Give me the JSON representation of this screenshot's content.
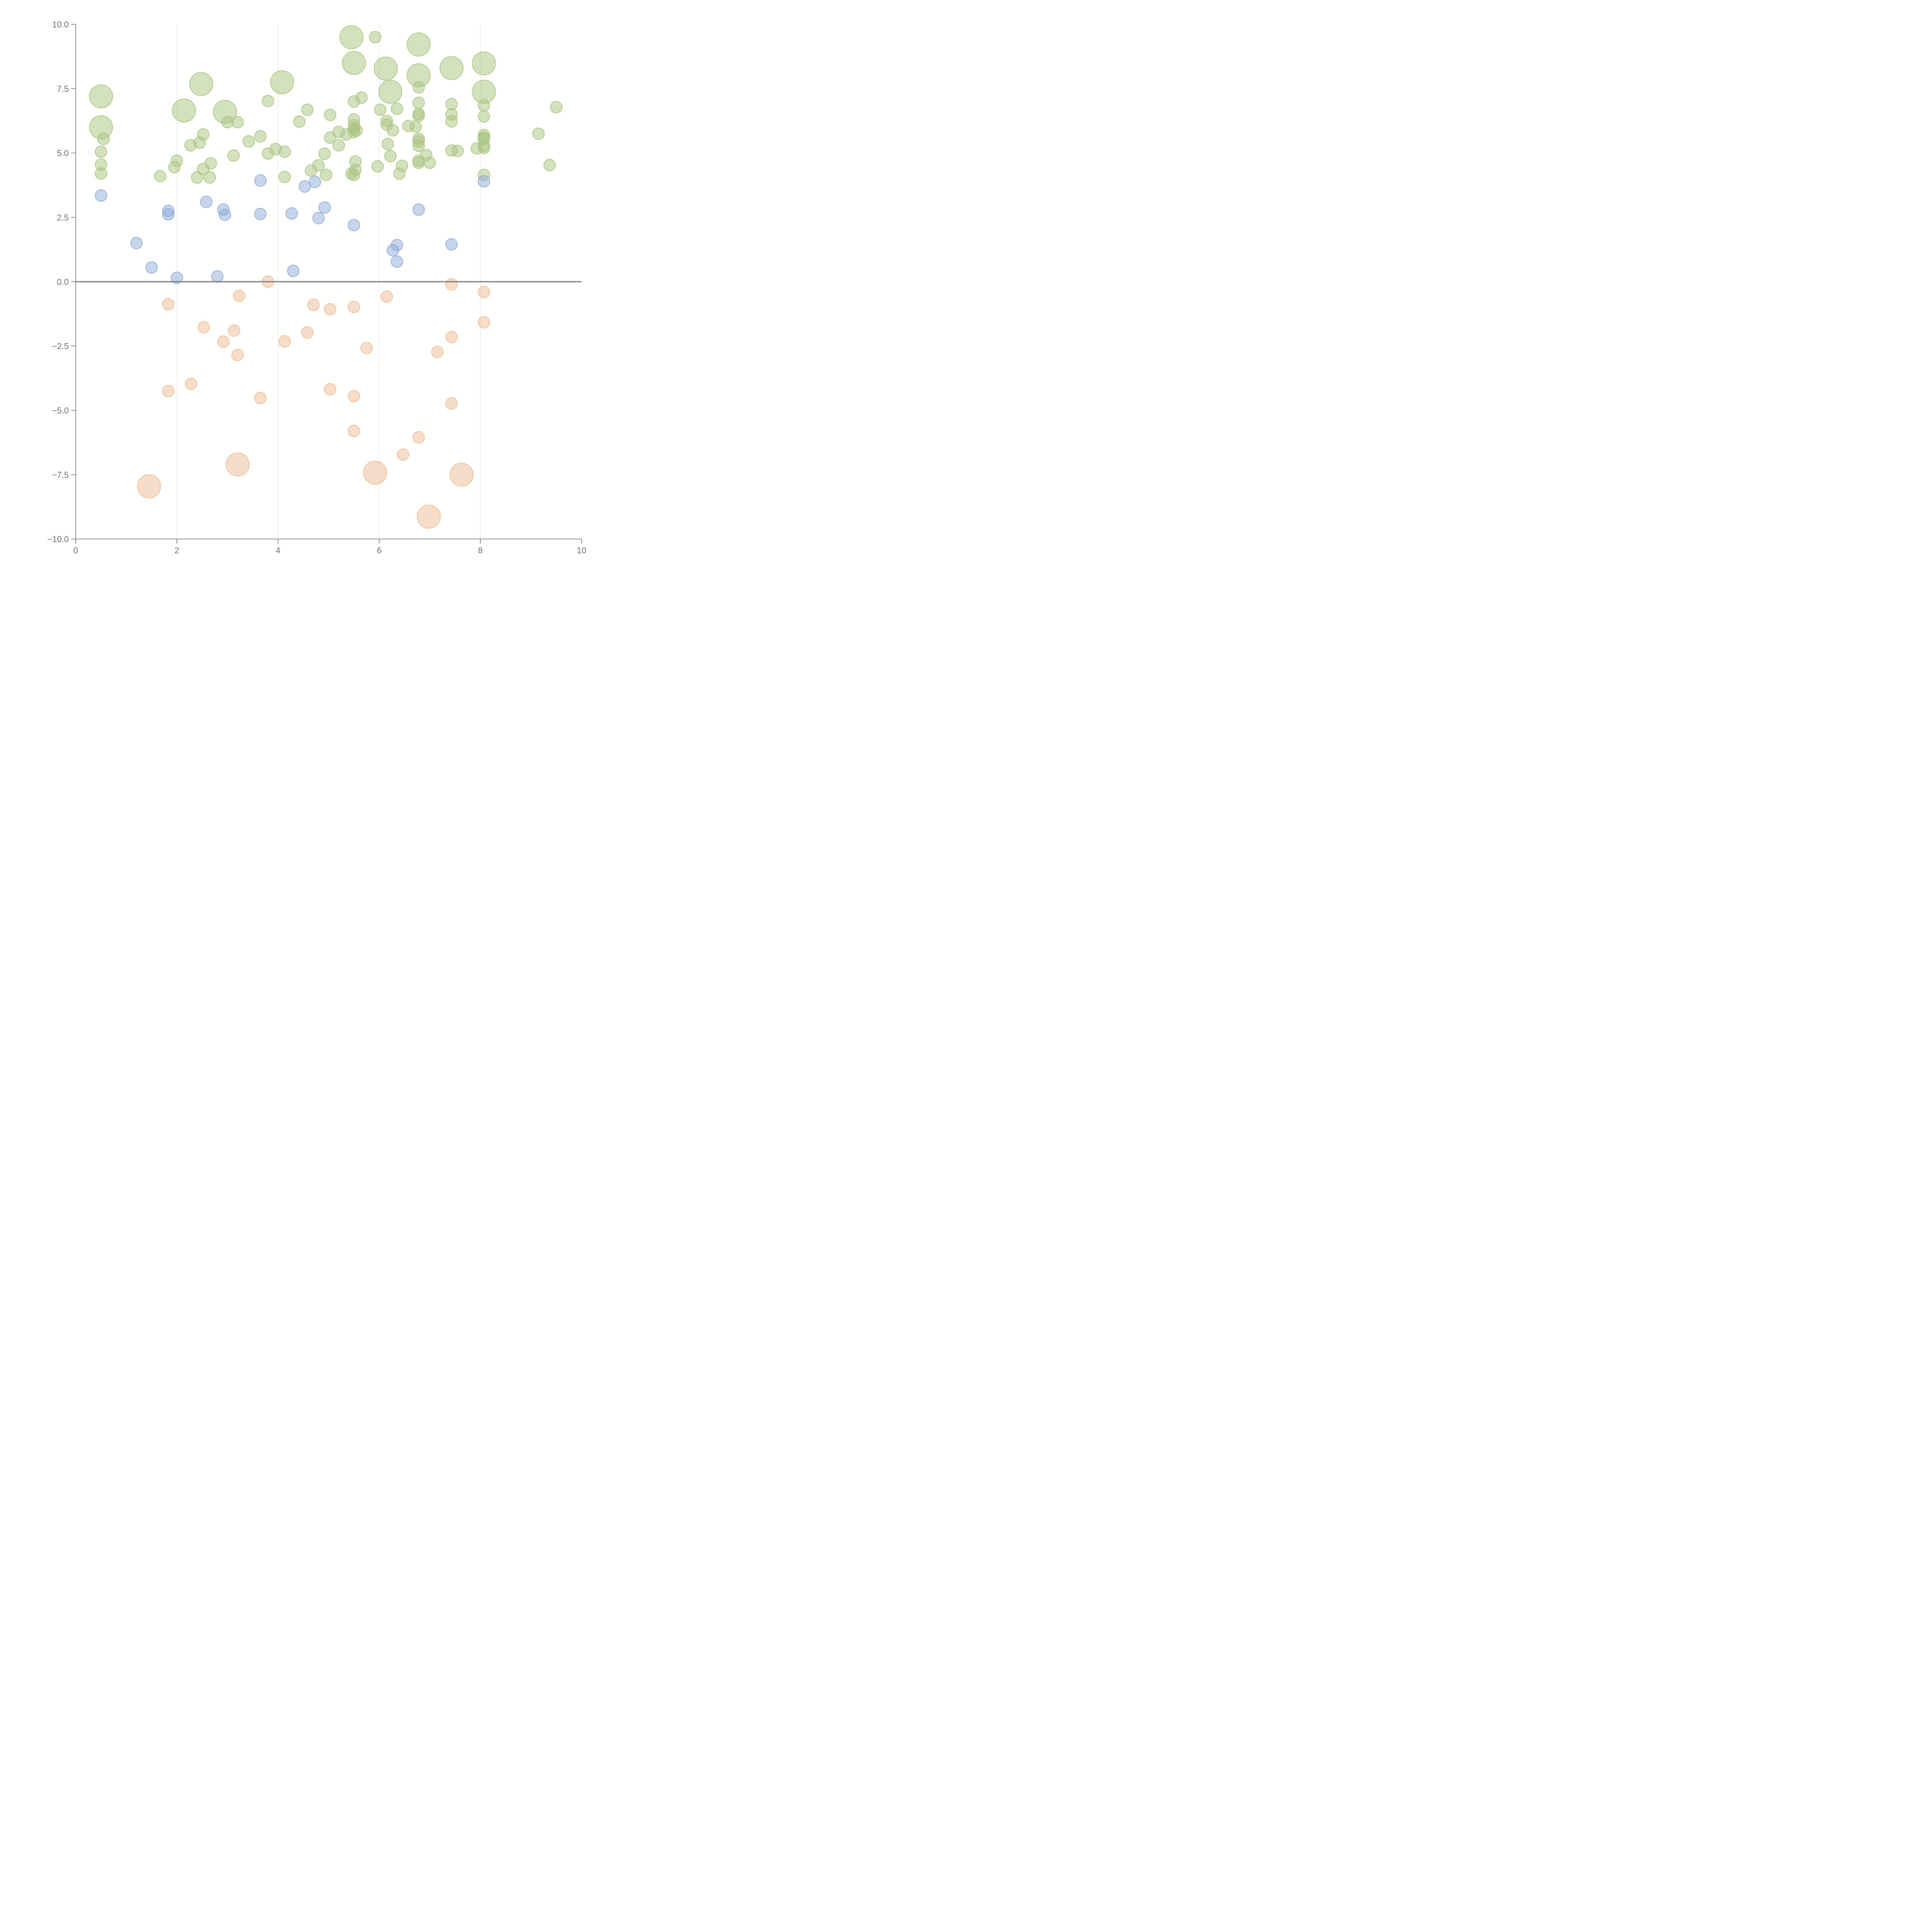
{
  "chart_data": {
    "type": "scatter",
    "title": "",
    "xlabel": "",
    "ylabel": "",
    "xlim": [
      0,
      10
    ],
    "ylim": [
      -10,
      10
    ],
    "x_ticks": [
      "0",
      "2",
      "4",
      "6",
      "8",
      "10"
    ],
    "y_ticks": [
      "−10.0",
      "−7.5",
      "−5.0",
      "−2.5",
      "0.0",
      "2.5",
      "5.0",
      "7.5",
      "10.0"
    ],
    "x_tick_values": [
      0,
      2,
      4,
      6,
      8,
      10
    ],
    "y_tick_values": [
      -10,
      -7.5,
      -5,
      -2.5,
      0,
      2.5,
      5,
      7.5,
      10
    ],
    "grid": "vertical gridlines at x ticks",
    "reference_line": {
      "y": 0,
      "color": "#777777"
    },
    "legend": "none",
    "series": [
      {
        "color": "#a9c47f",
        "points": [
          {
            "x": 0.5,
            "y": 7.2,
            "s": 3
          },
          {
            "x": 0.5,
            "y": 6.0,
            "s": 3
          },
          {
            "x": 0.55,
            "y": 5.55,
            "s": 1
          },
          {
            "x": 0.5,
            "y": 5.05,
            "s": 1
          },
          {
            "x": 0.5,
            "y": 4.55,
            "s": 1
          },
          {
            "x": 0.5,
            "y": 4.2,
            "s": 1
          },
          {
            "x": 1.67,
            "y": 4.1,
            "s": 1
          },
          {
            "x": 1.95,
            "y": 4.45,
            "s": 1
          },
          {
            "x": 2.0,
            "y": 4.7,
            "s": 1
          },
          {
            "x": 2.14,
            "y": 6.65,
            "s": 3
          },
          {
            "x": 2.27,
            "y": 5.3,
            "s": 1
          },
          {
            "x": 2.45,
            "y": 5.4,
            "s": 1
          },
          {
            "x": 2.4,
            "y": 4.05,
            "s": 1
          },
          {
            "x": 2.52,
            "y": 4.38,
            "s": 1
          },
          {
            "x": 2.52,
            "y": 5.72,
            "s": 1
          },
          {
            "x": 2.48,
            "y": 7.68,
            "s": 3
          },
          {
            "x": 2.65,
            "y": 4.05,
            "s": 1
          },
          {
            "x": 2.67,
            "y": 4.6,
            "s": 1
          },
          {
            "x": 2.95,
            "y": 6.6,
            "s": 3
          },
          {
            "x": 3.0,
            "y": 6.2,
            "s": 1
          },
          {
            "x": 3.2,
            "y": 6.2,
            "s": 1
          },
          {
            "x": 3.12,
            "y": 4.9,
            "s": 1
          },
          {
            "x": 3.42,
            "y": 5.45,
            "s": 1
          },
          {
            "x": 3.65,
            "y": 5.65,
            "s": 1
          },
          {
            "x": 3.8,
            "y": 7.02,
            "s": 1
          },
          {
            "x": 3.8,
            "y": 4.98,
            "s": 1
          },
          {
            "x": 3.95,
            "y": 5.15,
            "s": 1
          },
          {
            "x": 4.08,
            "y": 7.75,
            "s": 3
          },
          {
            "x": 4.13,
            "y": 5.05,
            "s": 1
          },
          {
            "x": 4.13,
            "y": 4.07,
            "s": 1
          },
          {
            "x": 4.42,
            "y": 6.22,
            "s": 1
          },
          {
            "x": 4.58,
            "y": 6.68,
            "s": 1
          },
          {
            "x": 4.65,
            "y": 4.32,
            "s": 1
          },
          {
            "x": 4.8,
            "y": 4.52,
            "s": 1
          },
          {
            "x": 4.92,
            "y": 4.97,
            "s": 1
          },
          {
            "x": 4.95,
            "y": 4.15,
            "s": 1
          },
          {
            "x": 5.03,
            "y": 6.48,
            "s": 1
          },
          {
            "x": 5.03,
            "y": 5.6,
            "s": 1
          },
          {
            "x": 5.2,
            "y": 5.82,
            "s": 1
          },
          {
            "x": 5.2,
            "y": 5.3,
            "s": 1
          },
          {
            "x": 5.35,
            "y": 5.72,
            "s": 1
          },
          {
            "x": 5.45,
            "y": 9.5,
            "s": 3
          },
          {
            "x": 5.5,
            "y": 8.5,
            "s": 3
          },
          {
            "x": 5.5,
            "y": 7.0,
            "s": 1
          },
          {
            "x": 5.5,
            "y": 6.3,
            "s": 1
          },
          {
            "x": 5.5,
            "y": 6.08,
            "s": 1
          },
          {
            "x": 5.5,
            "y": 5.95,
            "s": 1
          },
          {
            "x": 5.5,
            "y": 5.82,
            "s": 1
          },
          {
            "x": 5.55,
            "y": 5.88,
            "s": 1
          },
          {
            "x": 5.53,
            "y": 4.67,
            "s": 1
          },
          {
            "x": 5.53,
            "y": 4.35,
            "s": 1
          },
          {
            "x": 5.45,
            "y": 4.2,
            "s": 1
          },
          {
            "x": 5.5,
            "y": 4.15,
            "s": 1
          },
          {
            "x": 5.65,
            "y": 7.15,
            "s": 1
          },
          {
            "x": 5.92,
            "y": 9.5,
            "s": 1
          },
          {
            "x": 5.97,
            "y": 4.48,
            "s": 1
          },
          {
            "x": 6.02,
            "y": 6.68,
            "s": 1
          },
          {
            "x": 6.13,
            "y": 8.28,
            "s": 3
          },
          {
            "x": 6.22,
            "y": 7.38,
            "s": 3
          },
          {
            "x": 6.15,
            "y": 6.25,
            "s": 1
          },
          {
            "x": 6.15,
            "y": 6.1,
            "s": 1
          },
          {
            "x": 6.27,
            "y": 5.88,
            "s": 1
          },
          {
            "x": 6.17,
            "y": 5.35,
            "s": 1
          },
          {
            "x": 6.22,
            "y": 4.88,
            "s": 1
          },
          {
            "x": 6.35,
            "y": 6.72,
            "s": 1
          },
          {
            "x": 6.45,
            "y": 4.5,
            "s": 1
          },
          {
            "x": 6.4,
            "y": 4.2,
            "s": 1
          },
          {
            "x": 6.58,
            "y": 6.05,
            "s": 1
          },
          {
            "x": 6.78,
            "y": 9.22,
            "s": 3
          },
          {
            "x": 6.78,
            "y": 8.02,
            "s": 3
          },
          {
            "x": 6.78,
            "y": 7.55,
            "s": 1
          },
          {
            "x": 6.78,
            "y": 6.95,
            "s": 1
          },
          {
            "x": 6.78,
            "y": 6.52,
            "s": 1
          },
          {
            "x": 6.78,
            "y": 6.45,
            "s": 1
          },
          {
            "x": 6.72,
            "y": 6.03,
            "s": 1
          },
          {
            "x": 6.78,
            "y": 5.55,
            "s": 1
          },
          {
            "x": 6.78,
            "y": 5.45,
            "s": 1
          },
          {
            "x": 6.78,
            "y": 5.28,
            "s": 1
          },
          {
            "x": 6.78,
            "y": 4.7,
            "s": 1
          },
          {
            "x": 6.78,
            "y": 4.62,
            "s": 1
          },
          {
            "x": 6.93,
            "y": 4.92,
            "s": 1
          },
          {
            "x": 7.0,
            "y": 4.62,
            "s": 1
          },
          {
            "x": 7.43,
            "y": 8.3,
            "s": 3
          },
          {
            "x": 7.43,
            "y": 6.9,
            "s": 1
          },
          {
            "x": 7.43,
            "y": 6.5,
            "s": 1
          },
          {
            "x": 7.43,
            "y": 6.23,
            "s": 1
          },
          {
            "x": 7.43,
            "y": 5.1,
            "s": 1
          },
          {
            "x": 7.55,
            "y": 5.08,
            "s": 1
          },
          {
            "x": 7.93,
            "y": 5.18,
            "s": 1
          },
          {
            "x": 8.07,
            "y": 8.48,
            "s": 3
          },
          {
            "x": 8.07,
            "y": 7.38,
            "s": 3
          },
          {
            "x": 8.07,
            "y": 6.85,
            "s": 1
          },
          {
            "x": 8.07,
            "y": 6.42,
            "s": 1
          },
          {
            "x": 8.07,
            "y": 5.7,
            "s": 1
          },
          {
            "x": 8.07,
            "y": 5.6,
            "s": 1
          },
          {
            "x": 8.07,
            "y": 5.55,
            "s": 1
          },
          {
            "x": 8.07,
            "y": 5.28,
            "s": 1
          },
          {
            "x": 8.07,
            "y": 5.2,
            "s": 1
          },
          {
            "x": 8.07,
            "y": 4.15,
            "s": 1
          },
          {
            "x": 9.15,
            "y": 5.75,
            "s": 1
          },
          {
            "x": 9.37,
            "y": 4.53,
            "s": 1
          },
          {
            "x": 9.5,
            "y": 6.78,
            "s": 1
          }
        ]
      },
      {
        "color": "#8eabd8",
        "points": [
          {
            "x": 0.5,
            "y": 3.35,
            "s": 1
          },
          {
            "x": 1.2,
            "y": 1.5,
            "s": 1
          },
          {
            "x": 1.5,
            "y": 0.55,
            "s": 1
          },
          {
            "x": 1.83,
            "y": 2.75,
            "s": 1
          },
          {
            "x": 1.83,
            "y": 2.62,
            "s": 1
          },
          {
            "x": 2.0,
            "y": 0.15,
            "s": 1
          },
          {
            "x": 2.58,
            "y": 3.1,
            "s": 1
          },
          {
            "x": 2.8,
            "y": 0.2,
            "s": 1
          },
          {
            "x": 2.92,
            "y": 2.8,
            "s": 1
          },
          {
            "x": 2.95,
            "y": 2.6,
            "s": 1
          },
          {
            "x": 3.65,
            "y": 3.93,
            "s": 1
          },
          {
            "x": 3.65,
            "y": 2.63,
            "s": 1
          },
          {
            "x": 4.27,
            "y": 2.65,
            "s": 1
          },
          {
            "x": 4.3,
            "y": 0.42,
            "s": 1
          },
          {
            "x": 4.53,
            "y": 3.7,
            "s": 1
          },
          {
            "x": 4.73,
            "y": 3.88,
            "s": 1
          },
          {
            "x": 4.8,
            "y": 2.47,
            "s": 1
          },
          {
            "x": 4.92,
            "y": 2.88,
            "s": 1
          },
          {
            "x": 5.5,
            "y": 2.2,
            "s": 1
          },
          {
            "x": 6.27,
            "y": 1.22,
            "s": 1
          },
          {
            "x": 6.35,
            "y": 1.42,
            "s": 1
          },
          {
            "x": 6.35,
            "y": 0.78,
            "s": 1
          },
          {
            "x": 6.78,
            "y": 2.8,
            "s": 1
          },
          {
            "x": 7.43,
            "y": 1.45,
            "s": 1
          },
          {
            "x": 8.07,
            "y": 3.9,
            "s": 1
          }
        ]
      },
      {
        "color": "#eebc94",
        "points": [
          {
            "x": 1.45,
            "y": -7.95,
            "s": 3
          },
          {
            "x": 1.83,
            "y": -0.88,
            "s": 1
          },
          {
            "x": 1.83,
            "y": -4.25,
            "s": 1
          },
          {
            "x": 2.28,
            "y": -3.97,
            "s": 1
          },
          {
            "x": 2.53,
            "y": -1.77,
            "s": 1
          },
          {
            "x": 2.92,
            "y": -2.33,
            "s": 1
          },
          {
            "x": 3.13,
            "y": -1.9,
            "s": 1
          },
          {
            "x": 3.2,
            "y": -7.1,
            "s": 3
          },
          {
            "x": 3.2,
            "y": -2.85,
            "s": 1
          },
          {
            "x": 3.23,
            "y": -0.55,
            "s": 1
          },
          {
            "x": 3.65,
            "y": -4.52,
            "s": 1
          },
          {
            "x": 3.8,
            "y": 0.0,
            "s": 1
          },
          {
            "x": 4.13,
            "y": -2.32,
            "s": 1
          },
          {
            "x": 4.58,
            "y": -1.97,
            "s": 1
          },
          {
            "x": 4.7,
            "y": -0.9,
            "s": 1
          },
          {
            "x": 5.03,
            "y": -1.07,
            "s": 1
          },
          {
            "x": 5.03,
            "y": -4.18,
            "s": 1
          },
          {
            "x": 5.5,
            "y": -0.98,
            "s": 1
          },
          {
            "x": 5.5,
            "y": -4.45,
            "s": 1
          },
          {
            "x": 5.5,
            "y": -5.8,
            "s": 1
          },
          {
            "x": 5.75,
            "y": -2.58,
            "s": 1
          },
          {
            "x": 5.92,
            "y": -7.42,
            "s": 3
          },
          {
            "x": 6.15,
            "y": -0.58,
            "s": 1
          },
          {
            "x": 6.47,
            "y": -6.72,
            "s": 1
          },
          {
            "x": 6.78,
            "y": -6.05,
            "s": 1
          },
          {
            "x": 6.98,
            "y": -9.13,
            "s": 3
          },
          {
            "x": 7.15,
            "y": -2.73,
            "s": 1
          },
          {
            "x": 7.43,
            "y": -0.1,
            "s": 1
          },
          {
            "x": 7.43,
            "y": -2.15,
            "s": 1
          },
          {
            "x": 7.43,
            "y": -4.73,
            "s": 1
          },
          {
            "x": 7.63,
            "y": -7.5,
            "s": 3
          },
          {
            "x": 8.07,
            "y": -0.4,
            "s": 1
          },
          {
            "x": 8.07,
            "y": -1.58,
            "s": 1
          }
        ]
      }
    ]
  }
}
